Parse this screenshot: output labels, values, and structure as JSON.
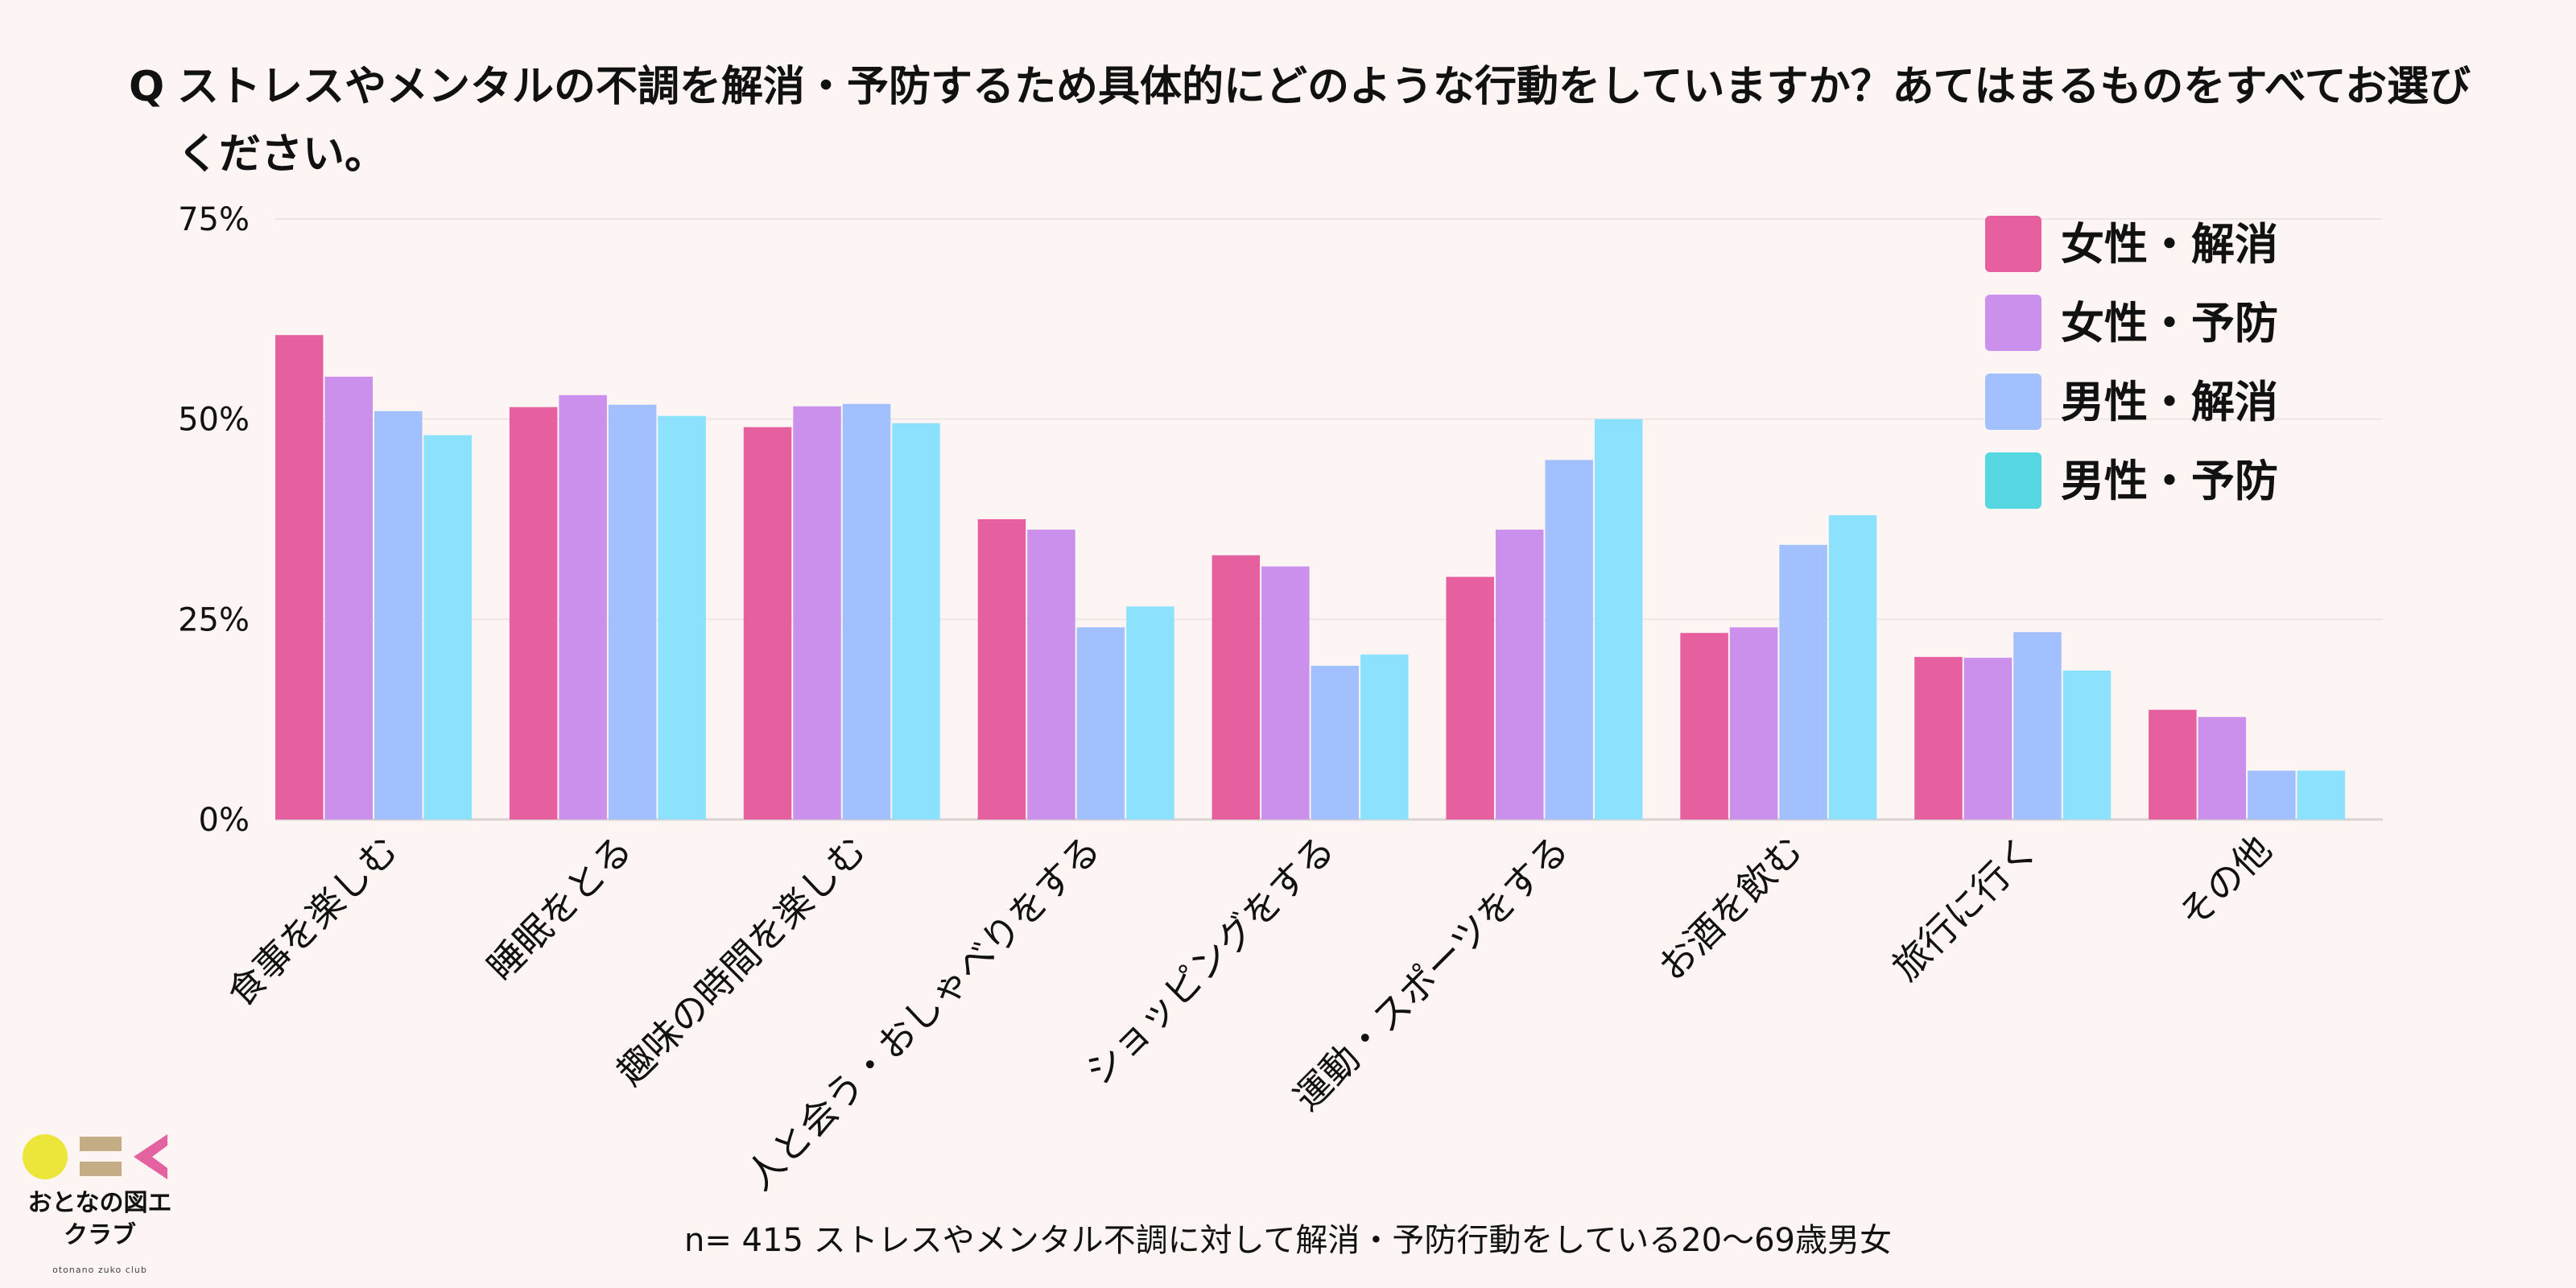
{
  "question": {
    "mark": "Q",
    "text": "ストレスやメンタルの不調を解消・予防するため具体的にどのような行動をしていますか？あてはまるものをすべてお選びください。"
  },
  "footnote": "n= 415 ストレスやメンタル不調に対して解消・予防行動をしている20〜69歳男女",
  "logo": {
    "main": "おとなの図エクラブ",
    "sub": "otonano zuko club",
    "colors": [
      "#ece63a",
      "#c4ad84",
      "#e4629f"
    ]
  },
  "chart_data": {
    "type": "bar",
    "title": "",
    "xlabel": "",
    "ylabel": "",
    "ylim": [
      0,
      75
    ],
    "yticks": [
      0,
      25,
      50,
      75
    ],
    "ytick_labels": [
      "0%",
      "25%",
      "50%",
      "75%"
    ],
    "grid": true,
    "legend_position": "top-right",
    "categories": [
      "食事を楽しむ",
      "睡眠をとる",
      "趣味の時間を楽しむ",
      "人と会う・おしゃべりをする",
      "ショッピングをする",
      "運動・スポーツをする",
      "お酒を飲む",
      "旅行に行く",
      "その他"
    ],
    "series": [
      {
        "name": "女性・解消",
        "color": "#e65f9e",
        "values": [
          60.5,
          51.5,
          49,
          37.5,
          33,
          30.3,
          23.3,
          20.3,
          13.7
        ]
      },
      {
        "name": "女性・予防",
        "color": "#cb90eb",
        "values": [
          55.3,
          53,
          51.6,
          36.2,
          31.6,
          36.2,
          24,
          20.2,
          12.8
        ]
      },
      {
        "name": "男性・解消",
        "color": "#a2c0fe",
        "values": [
          51,
          51.8,
          51.9,
          24,
          19.2,
          44.9,
          34.3,
          23.4,
          6.1
        ]
      },
      {
        "name": "男性・予防",
        "color": "#8ce1fc",
        "values": [
          48,
          50.4,
          49.5,
          26.6,
          20.6,
          50,
          38,
          18.6,
          6.1
        ]
      }
    ],
    "legend_swatch_colors": [
      "#e65f9e",
      "#cb90eb",
      "#a2c0fe",
      "#55d6e0"
    ]
  }
}
